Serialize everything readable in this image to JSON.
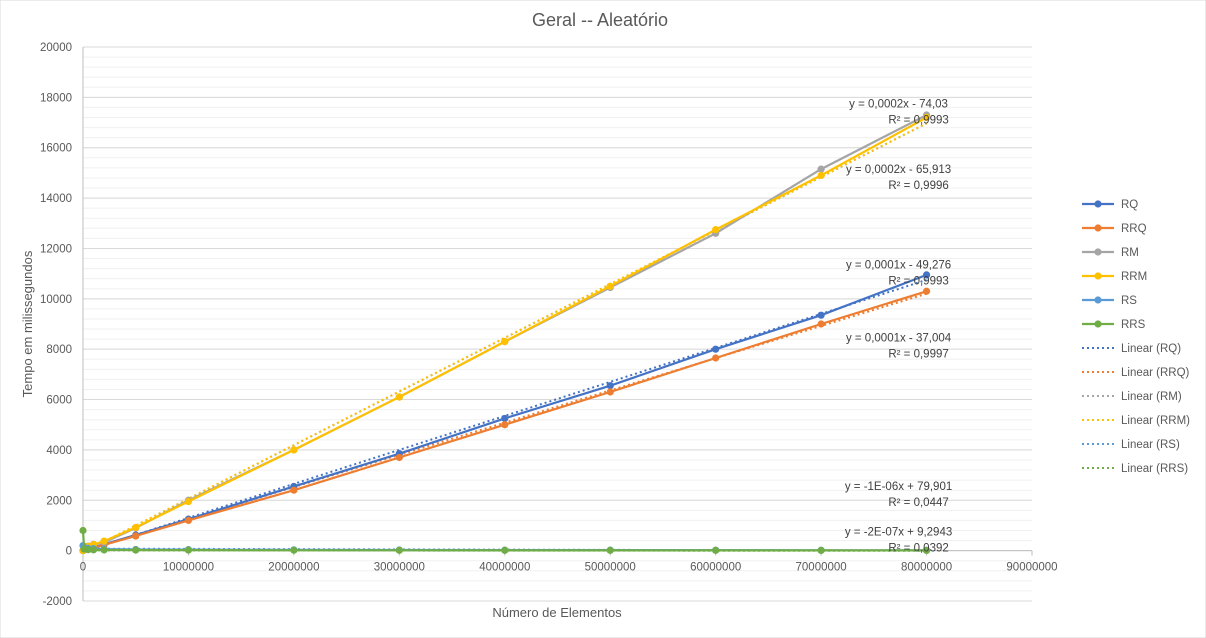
{
  "chart_data": {
    "type": "scatter",
    "title": "Geral -- Aleatório",
    "xlabel": "Número de Elementos",
    "ylabel": "Tempo em milissegundos",
    "xlim": [
      0,
      90000000
    ],
    "ylim": [
      -2000,
      20000
    ],
    "x_ticks": [
      0,
      10000000,
      20000000,
      30000000,
      40000000,
      50000000,
      60000000,
      70000000,
      80000000,
      90000000
    ],
    "y_ticks": [
      -2000,
      0,
      2000,
      4000,
      6000,
      8000,
      10000,
      12000,
      14000,
      16000,
      18000,
      20000
    ],
    "x": [
      0,
      100000,
      500000,
      1000000,
      2000000,
      5000000,
      10000000,
      20000000,
      30000000,
      40000000,
      50000000,
      60000000,
      70000000,
      80000000
    ],
    "grid": true,
    "legend_position": "right",
    "series": [
      {
        "name": "RQ",
        "color": "#4472C4",
        "values": [
          0,
          20,
          60,
          120,
          250,
          620,
          1250,
          2550,
          3850,
          5250,
          6550,
          8000,
          9350,
          10950
        ]
      },
      {
        "name": "RRQ",
        "color": "#ED7D31",
        "values": [
          0,
          20,
          55,
          110,
          230,
          580,
          1200,
          2400,
          3700,
          5000,
          6300,
          7650,
          9000,
          10300
        ]
      },
      {
        "name": "RM",
        "color": "#A5A5A5",
        "values": [
          0,
          40,
          180,
          250,
          330,
          900,
          2000,
          4000,
          6100,
          8300,
          10450,
          12600,
          15150,
          17300
        ]
      },
      {
        "name": "RRM",
        "color": "#FFC000",
        "values": [
          0,
          40,
          170,
          240,
          380,
          920,
          1950,
          4000,
          6100,
          8300,
          10500,
          12750,
          14900,
          17200
        ]
      },
      {
        "name": "RS",
        "color": "#5B9BD5",
        "values": [
          200,
          120,
          90,
          80,
          60,
          45,
          40,
          30,
          25,
          20,
          20,
          18,
          15,
          15
        ]
      },
      {
        "name": "RRS",
        "color": "#70AD47",
        "values": [
          800,
          60,
          40,
          30,
          25,
          20,
          20,
          15,
          12,
          10,
          10,
          10,
          8,
          8
        ]
      }
    ],
    "trendlines": [
      {
        "name": "Linear (RQ)",
        "series": "RQ",
        "color": "#4472C4",
        "slope": 0.000135,
        "intercept": -49.276
      },
      {
        "name": "Linear (RRQ)",
        "series": "RRQ",
        "color": "#ED7D31",
        "slope": 0.000128,
        "intercept": -37.004
      },
      {
        "name": "Linear (RM)",
        "series": "RM",
        "color": "#A5A5A5",
        "slope": 0.000213,
        "intercept": -74.03
      },
      {
        "name": "Linear (RRM)",
        "series": "RRM",
        "color": "#FFC000",
        "slope": 0.000213,
        "intercept": -65.913
      },
      {
        "name": "Linear (RS)",
        "series": "RS",
        "color": "#5B9BD5",
        "slope": -1e-06,
        "intercept": 79.901
      },
      {
        "name": "Linear (RRS)",
        "series": "RRS",
        "color": "#70AD47",
        "slope": -2e-07,
        "intercept": 9.2943
      }
    ],
    "equations": [
      {
        "eq": "y = 0,0002x - 74,03",
        "r2": "R² = 0,9993",
        "ax": 80000000,
        "ay": 17600
      },
      {
        "eq": "y = 0,0002x - 65,913",
        "r2": "R² = 0,9996",
        "ax": 80000000,
        "ay": 15000
      },
      {
        "eq": "y = 0,0001x - 49,276",
        "r2": "R² = 0,9993",
        "ax": 80000000,
        "ay": 11200
      },
      {
        "eq": "y = 0,0001x - 37,004",
        "r2": "R² = 0,9997",
        "ax": 80000000,
        "ay": 8300
      },
      {
        "eq": "y = -1E-06x + 79,901",
        "r2": "R² = 0,0447",
        "ax": 80000000,
        "ay": 2400
      },
      {
        "eq": "y = -2E-07x + 9,2943",
        "r2": "R² = 0,0392",
        "ax": 80000000,
        "ay": 600
      }
    ]
  }
}
